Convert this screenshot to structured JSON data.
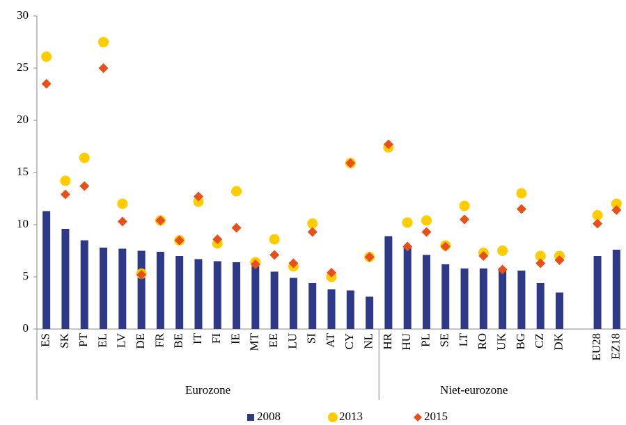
{
  "chart_data": {
    "type": "bar-dot",
    "categories": [
      "ES",
      "SK",
      "PT",
      "EL",
      "LV",
      "DE",
      "FR",
      "BE",
      "IT",
      "FI",
      "IE",
      "MT",
      "EE",
      "LU",
      "SI",
      "AT",
      "CY",
      "NL",
      "HR",
      "HU",
      "PL",
      "SE",
      "LT",
      "RO",
      "UK",
      "BG",
      "CZ",
      "DK",
      null,
      "EU28",
      "EZ18"
    ],
    "groups": [
      "Eurozone",
      "Niet-eurozone"
    ],
    "series": [
      {
        "name": "2008",
        "color": "#2e3a87",
        "mark": "bar",
        "values": [
          11.3,
          9.6,
          8.5,
          7.8,
          7.7,
          7.5,
          7.4,
          7.0,
          6.7,
          6.5,
          6.4,
          6.0,
          5.5,
          4.9,
          4.4,
          3.8,
          3.7,
          3.1,
          8.9,
          7.8,
          7.1,
          6.2,
          5.8,
          5.8,
          5.8,
          5.6,
          4.4,
          3.5,
          null,
          7.0,
          7.6
        ]
      },
      {
        "name": "2013",
        "color": "#ffcc00",
        "mark": "circle",
        "values": [
          26.1,
          14.2,
          16.4,
          27.5,
          12.0,
          5.3,
          10.4,
          8.5,
          12.2,
          8.2,
          13.2,
          6.4,
          8.6,
          6.0,
          10.1,
          5.0,
          15.9,
          6.9,
          17.4,
          10.2,
          10.4,
          8.0,
          11.8,
          7.3,
          7.5,
          13.0,
          7.0,
          7.0,
          null,
          10.9,
          12.0
        ]
      },
      {
        "name": "2015",
        "color": "#e8501a",
        "mark": "diamond",
        "values": [
          23.5,
          12.9,
          13.7,
          25.0,
          10.3,
          5.2,
          10.4,
          8.5,
          12.7,
          8.6,
          9.7,
          6.2,
          7.1,
          6.3,
          9.3,
          5.4,
          15.9,
          6.9,
          17.7,
          7.9,
          9.3,
          7.9,
          10.5,
          7.0,
          5.7,
          11.5,
          6.3,
          6.6,
          null,
          10.1,
          11.4
        ]
      }
    ],
    "ylim": [
      0,
      30
    ],
    "yticks": [
      0,
      5,
      10,
      15,
      20,
      25,
      30
    ],
    "grid": false
  }
}
